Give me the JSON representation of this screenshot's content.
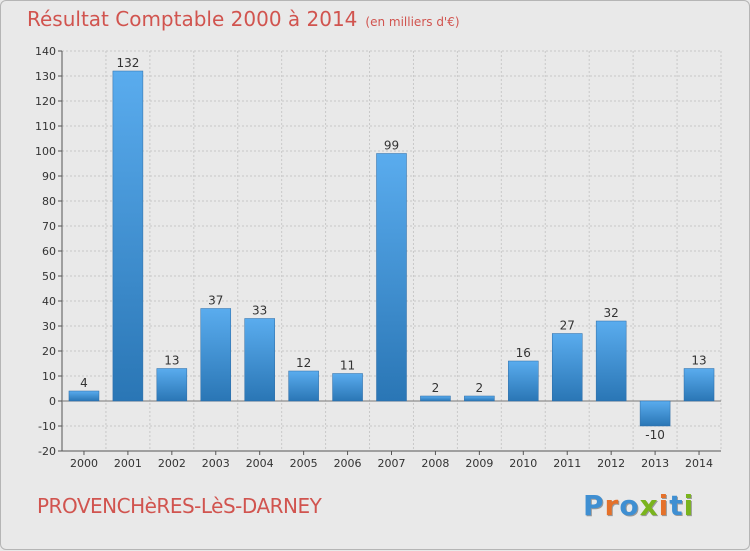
{
  "title": "Résultat Comptable 2000 à 2014",
  "subtitle": "(en milliers d'€)",
  "town": "PROVENCHèRES-LèS-DARNEY",
  "logo": {
    "text": "Proxiti",
    "letters": [
      {
        "ch": "P",
        "color": "#3f8fd2"
      },
      {
        "ch": "r",
        "color": "#e5712a"
      },
      {
        "ch": "o",
        "color": "#3f8fd2"
      },
      {
        "ch": "x",
        "color": "#7ab41d"
      },
      {
        "ch": "i",
        "color": "#e5712a"
      },
      {
        "ch": "t",
        "color": "#3f8fd2"
      },
      {
        "ch": "i",
        "color": "#7ab41d"
      }
    ]
  },
  "colors": {
    "title": "#d1544f",
    "bar_top": "#5aacee",
    "bar_bottom": "#2a76b5",
    "grid": "#c8c8c8"
  },
  "chart_data": {
    "type": "bar",
    "categories": [
      "2000",
      "2001",
      "2002",
      "2003",
      "2004",
      "2005",
      "2006",
      "2007",
      "2008",
      "2009",
      "2010",
      "2011",
      "2012",
      "2013",
      "2014"
    ],
    "values": [
      4,
      132,
      13,
      37,
      33,
      12,
      11,
      99,
      2,
      2,
      16,
      27,
      32,
      -10,
      13
    ],
    "ylim": [
      -20,
      140
    ],
    "yticks": [
      -20,
      -10,
      0,
      10,
      20,
      30,
      40,
      50,
      60,
      70,
      80,
      90,
      100,
      110,
      120,
      130,
      140
    ],
    "grid": true
  }
}
